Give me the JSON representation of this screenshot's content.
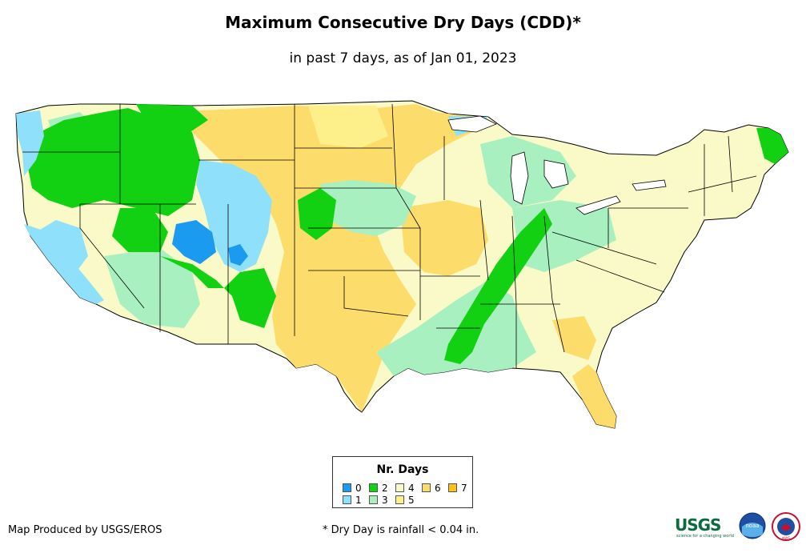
{
  "title": "Maximum Consecutive Dry Days (CDD)*",
  "subtitle": "in past 7 days, as of Jan 01, 2023",
  "legend": {
    "title": "Nr. Days",
    "items": [
      {
        "label": "0",
        "color": "#1a9bf0"
      },
      {
        "label": "1",
        "color": "#8ee0fb"
      },
      {
        "label": "2",
        "color": "#12d112"
      },
      {
        "label": "3",
        "color": "#a9f0c0"
      },
      {
        "label": "4",
        "color": "#fafac8"
      },
      {
        "label": "5",
        "color": "#fdf08a"
      },
      {
        "label": "6",
        "color": "#fcdc6a"
      },
      {
        "label": "7",
        "color": "#fcc21a"
      }
    ]
  },
  "footer": {
    "credit": "Map Produced by USGS/EROS",
    "note": "* Dry Day is rainfall < 0.04 in."
  },
  "logos": {
    "usgs": "USGS",
    "usgs_tagline": "science for a changing world",
    "noaa": "noaa",
    "nws": "NWS"
  }
}
